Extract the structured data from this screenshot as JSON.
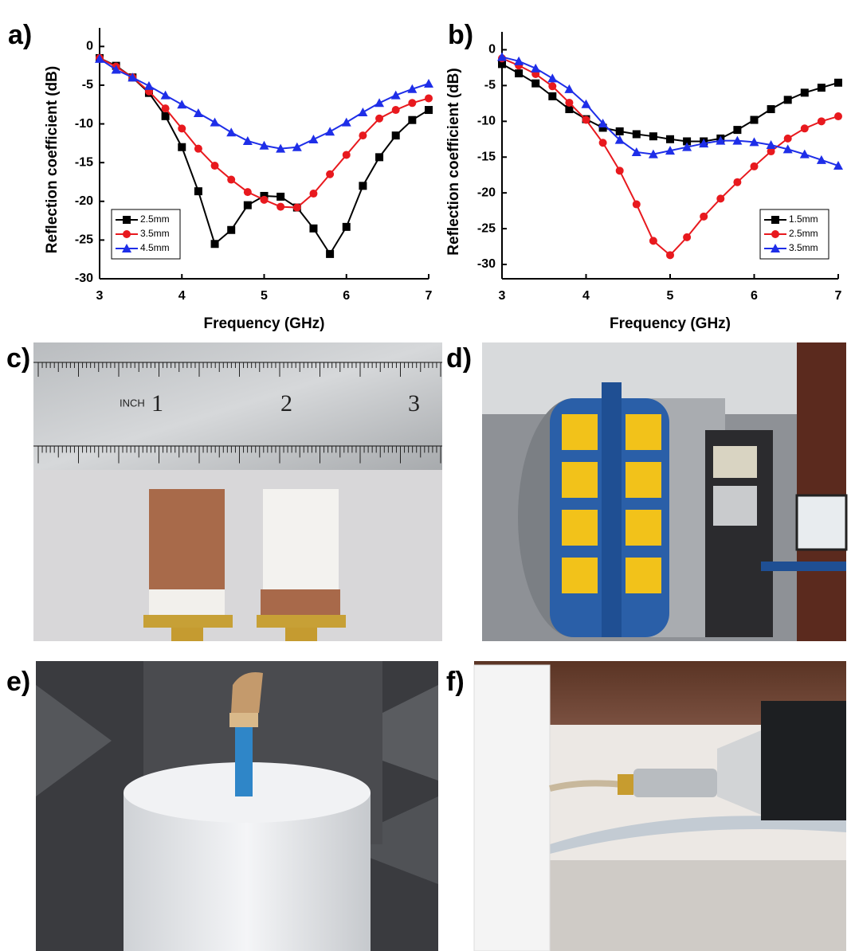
{
  "chart_data": [
    {
      "type": "line",
      "xlabel": "Frequency (GHz)",
      "ylabel": "Reflection coefficient (dB)",
      "x": [
        3.0,
        3.2,
        3.4,
        3.6,
        3.8,
        4.0,
        4.2,
        4.4,
        4.6,
        4.8,
        5.0,
        5.2,
        5.4,
        5.6,
        5.8,
        6.0,
        6.2,
        6.4,
        6.6,
        6.8,
        7.0
      ],
      "series": [
        {
          "name": "2.5mm",
          "color": "#000000",
          "marker": "square",
          "values": [
            -1.5,
            -2.5,
            -4,
            -6,
            -9,
            -13,
            -18.7,
            -25.5,
            -23.7,
            -20.5,
            -19.3,
            -19.4,
            -20.8,
            -23.5,
            -26.8,
            -23.3,
            -18,
            -14.3,
            -11.5,
            -9.5,
            -8.2
          ]
        },
        {
          "name": "3.5mm",
          "color": "#e8191e",
          "marker": "circle",
          "values": [
            -1.5,
            -2.6,
            -4,
            -5.8,
            -8,
            -10.6,
            -13.2,
            -15.4,
            -17.2,
            -18.8,
            -19.8,
            -20.7,
            -20.8,
            -19,
            -16.5,
            -14,
            -11.5,
            -9.3,
            -8.2,
            -7.3,
            -6.7
          ]
        },
        {
          "name": "4.5mm",
          "color": "#1e2ee8",
          "marker": "triangle",
          "values": [
            -1.6,
            -3,
            -4,
            -5.1,
            -6.3,
            -7.5,
            -8.6,
            -9.8,
            -11.1,
            -12.2,
            -12.8,
            -13.2,
            -13,
            -12,
            -11,
            -9.8,
            -8.5,
            -7.3,
            -6.3,
            -5.5,
            -4.8
          ]
        }
      ],
      "xlim": [
        3,
        7
      ],
      "xticks": [
        3,
        4,
        5,
        6,
        7
      ],
      "ylim": [
        -30,
        2.4
      ],
      "yticks": [
        0,
        -5,
        -10,
        -15,
        -20,
        -25,
        -30
      ],
      "legend": "lower left",
      "grid": false
    },
    {
      "type": "line",
      "xlabel": "Frequency (GHz)",
      "ylabel": "Reflection coefficient (dB)",
      "x": [
        3.0,
        3.2,
        3.4,
        3.6,
        3.8,
        4.0,
        4.2,
        4.4,
        4.6,
        4.8,
        5.0,
        5.2,
        5.4,
        5.6,
        5.8,
        6.0,
        6.2,
        6.4,
        6.6,
        6.8,
        7.0
      ],
      "series": [
        {
          "name": "1.5mm",
          "color": "#000000",
          "marker": "square",
          "values": [
            -2,
            -3.3,
            -4.7,
            -6.5,
            -8.3,
            -9.7,
            -10.9,
            -11.4,
            -11.8,
            -12.1,
            -12.5,
            -12.8,
            -12.8,
            -12.4,
            -11.2,
            -9.8,
            -8.3,
            -7,
            -6,
            -5.3,
            -4.6
          ]
        },
        {
          "name": "2.5mm",
          "color": "#e8191e",
          "marker": "circle",
          "values": [
            -1.2,
            -2.2,
            -3.4,
            -5.1,
            -7.4,
            -9.8,
            -13,
            -16.9,
            -21.6,
            -26.7,
            -28.7,
            -26.2,
            -23.3,
            -20.8,
            -18.5,
            -16.3,
            -14.2,
            -12.4,
            -11,
            -10,
            -9.3
          ]
        },
        {
          "name": "3.5mm",
          "color": "#1e2ee8",
          "marker": "triangle",
          "values": [
            -1,
            -1.6,
            -2.6,
            -4,
            -5.5,
            -7.6,
            -10.3,
            -12.6,
            -14.3,
            -14.6,
            -14.1,
            -13.6,
            -13.1,
            -12.7,
            -12.7,
            -12.9,
            -13.3,
            -13.9,
            -14.6,
            -15.4,
            -16.2
          ]
        }
      ],
      "xlim": [
        3,
        7
      ],
      "xticks": [
        3,
        4,
        5,
        6,
        7
      ],
      "ylim": [
        -32,
        2.5
      ],
      "yticks": [
        0,
        -5,
        -10,
        -15,
        -20,
        -25,
        -30
      ],
      "legend": "lower right",
      "grid": false
    }
  ],
  "panels": [
    "a)",
    "b)",
    "c)",
    "d)",
    "e)",
    "f)"
  ],
  "ruler": [
    "INCH",
    "1",
    "2",
    "3"
  ]
}
